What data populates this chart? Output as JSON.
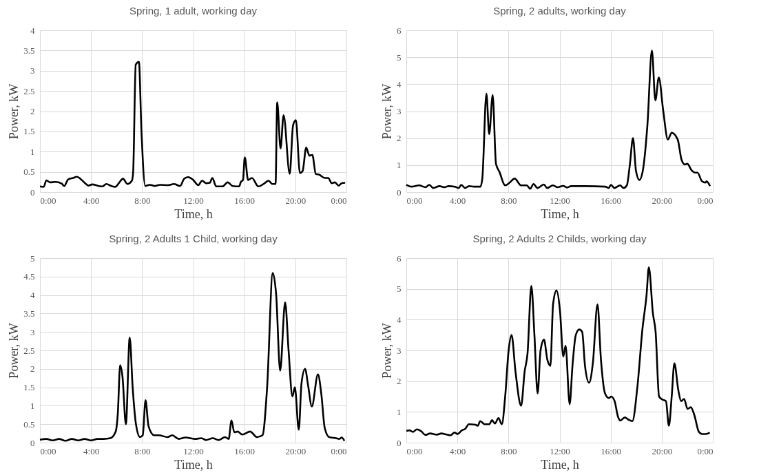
{
  "chart_data": [
    {
      "type": "line",
      "title": "Spring, 1 adult, working day",
      "xlabel": "Time, h",
      "ylabel": "Power, kW",
      "color": "#000000",
      "line_style": "solid",
      "grid": true,
      "x": [
        0,
        0.3,
        0.5,
        0.8,
        1.2,
        1.7,
        1.9,
        2.2,
        2.6,
        2.9,
        3.2,
        3.6,
        3.8,
        4.1,
        4.6,
        4.9,
        5.2,
        5.6,
        5.9,
        6.2,
        6.5,
        6.85,
        7.2,
        7.3,
        7.5,
        7.75,
        7.95,
        8.25,
        8.6,
        9.0,
        9.4,
        10.0,
        10.5,
        10.97,
        11.3,
        11.6,
        12.0,
        12.39,
        12.7,
        13.0,
        13.3,
        13.5,
        13.8,
        14.3,
        14.7,
        15.1,
        15.6,
        15.73,
        15.9,
        16.04,
        16.3,
        16.6,
        17.1,
        17.6,
        17.9,
        18.2,
        18.45,
        18.58,
        18.84,
        19.08,
        19.56,
        19.82,
        20.04,
        20.36,
        20.57,
        20.85,
        21.1,
        21.33,
        21.6,
        21.87,
        22.3,
        22.58,
        22.84,
        23.1,
        23.38,
        23.64,
        23.9
      ],
      "values": [
        0.14,
        0.13,
        0.29,
        0.24,
        0.25,
        0.21,
        0.15,
        0.31,
        0.35,
        0.38,
        0.32,
        0.2,
        0.16,
        0.19,
        0.15,
        0.14,
        0.2,
        0.15,
        0.13,
        0.23,
        0.33,
        0.2,
        0.28,
        0.5,
        3.15,
        3.22,
        1.5,
        0.15,
        0.18,
        0.15,
        0.18,
        0.17,
        0.2,
        0.15,
        0.33,
        0.37,
        0.3,
        0.17,
        0.28,
        0.22,
        0.23,
        0.35,
        0.14,
        0.14,
        0.24,
        0.15,
        0.14,
        0.25,
        0.3,
        0.86,
        0.3,
        0.35,
        0.14,
        0.22,
        0.28,
        0.2,
        0.2,
        2.22,
        1.08,
        1.9,
        0.45,
        1.65,
        1.78,
        0.47,
        0.52,
        1.1,
        0.9,
        0.92,
        0.45,
        0.43,
        0.35,
        0.35,
        0.22,
        0.24,
        0.16,
        0.22,
        0.23
      ],
      "xlim": [
        0,
        24
      ],
      "xticks": [
        {
          "value": 0,
          "label": "0:00"
        },
        {
          "value": 4,
          "label": "4:00"
        },
        {
          "value": 8,
          "label": "8:00"
        },
        {
          "value": 12,
          "label": "12:00"
        },
        {
          "value": 16,
          "label": "16:00"
        },
        {
          "value": 20,
          "label": "20:00"
        },
        {
          "value": 24,
          "label": "0:00"
        }
      ],
      "ylim": [
        0,
        4
      ],
      "yticks": [
        0,
        0.5,
        1,
        1.5,
        2,
        2.5,
        3,
        3.5,
        4
      ]
    },
    {
      "type": "line",
      "title": "Spring, 2 adults, working day",
      "xlabel": "Time, h",
      "ylabel": "Power, kW",
      "color": "#000000",
      "line_style": "solid",
      "grid": true,
      "x": [
        0,
        0.4,
        1.0,
        1.5,
        1.8,
        2.1,
        2.6,
        3.0,
        3.3,
        3.8,
        4.1,
        4.3,
        4.6,
        4.9,
        5.3,
        5.8,
        5.95,
        6.27,
        6.49,
        6.76,
        7.02,
        7.29,
        7.74,
        8.09,
        8.48,
        8.98,
        9.43,
        9.7,
        9.96,
        10.27,
        10.77,
        11.03,
        11.48,
        11.84,
        12.28,
        12.58,
        12.9,
        14.0,
        15.58,
        15.85,
        16.02,
        16.29,
        16.74,
        17.0,
        17.27,
        17.5,
        17.75,
        17.98,
        18.25,
        18.52,
        18.88,
        19.23,
        19.5,
        19.77,
        20.12,
        20.48,
        20.78,
        21.25,
        21.55,
        21.82,
        22.0,
        22.35,
        22.62,
        22.8,
        23.15,
        23.42,
        23.51,
        23.78
      ],
      "values": [
        0.27,
        0.2,
        0.25,
        0.18,
        0.27,
        0.15,
        0.22,
        0.18,
        0.22,
        0.2,
        0.15,
        0.27,
        0.15,
        0.22,
        0.2,
        0.2,
        0.5,
        3.65,
        2.15,
        3.6,
        1.05,
        0.75,
        0.25,
        0.35,
        0.5,
        0.25,
        0.25,
        0.12,
        0.3,
        0.15,
        0.28,
        0.15,
        0.25,
        0.18,
        0.23,
        0.17,
        0.22,
        0.22,
        0.2,
        0.15,
        0.27,
        0.15,
        0.25,
        0.15,
        0.25,
        1.0,
        2.0,
        0.8,
        0.45,
        0.8,
        2.5,
        5.25,
        3.4,
        4.25,
        3.0,
        1.95,
        2.2,
        1.95,
        1.2,
        1.02,
        1.05,
        0.8,
        0.72,
        0.72,
        0.4,
        0.35,
        0.4,
        0.22
      ],
      "xlim": [
        0,
        24
      ],
      "xticks": [
        {
          "value": 0,
          "label": "0:00"
        },
        {
          "value": 4,
          "label": "4:00"
        },
        {
          "value": 8,
          "label": "8:00"
        },
        {
          "value": 12,
          "label": "12:00"
        },
        {
          "value": 16,
          "label": "16:00"
        },
        {
          "value": 20,
          "label": "20:00"
        },
        {
          "value": 24,
          "label": "0:00"
        }
      ],
      "ylim": [
        0,
        6
      ],
      "yticks": [
        0,
        1,
        2,
        3,
        4,
        5,
        6
      ]
    },
    {
      "type": "line",
      "title": "Spring, 2 Adults 1 Child, working day",
      "xlabel": "Time, h",
      "ylabel": "Power, kW",
      "color": "#000000",
      "line_style": "solid",
      "grid": true,
      "x": [
        0,
        0.5,
        1.0,
        1.5,
        2.0,
        2.5,
        3.0,
        3.5,
        4.0,
        4.5,
        5.0,
        5.5,
        5.93,
        6.1,
        6.28,
        6.46,
        6.73,
        7.03,
        7.26,
        7.52,
        7.84,
        8.05,
        8.27,
        8.5,
        8.94,
        9.3,
        10.0,
        10.35,
        10.88,
        11.4,
        12.12,
        12.65,
        13.0,
        13.54,
        13.98,
        14.5,
        14.78,
        15.0,
        15.22,
        15.49,
        15.84,
        16.46,
        16.99,
        17.43,
        17.79,
        18.23,
        18.5,
        18.81,
        19.2,
        19.47,
        19.77,
        19.96,
        20.27,
        20.48,
        20.76,
        21.0,
        21.29,
        21.77,
        22.04,
        22.3,
        22.65,
        23.19,
        23.45,
        23.63,
        23.84
      ],
      "values": [
        0.08,
        0.1,
        0.06,
        0.1,
        0.05,
        0.1,
        0.06,
        0.1,
        0.06,
        0.1,
        0.1,
        0.12,
        0.3,
        0.8,
        2.1,
        1.8,
        0.5,
        2.85,
        1.5,
        0.5,
        0.15,
        0.2,
        1.15,
        0.45,
        0.2,
        0.2,
        0.15,
        0.2,
        0.1,
        0.14,
        0.1,
        0.12,
        0.07,
        0.12,
        0.07,
        0.15,
        0.1,
        0.6,
        0.28,
        0.3,
        0.22,
        0.3,
        0.15,
        0.2,
        1.5,
        4.6,
        4.0,
        1.95,
        3.8,
        2.5,
        1.25,
        1.5,
        0.35,
        1.6,
        2.0,
        1.55,
        0.98,
        1.85,
        1.3,
        0.4,
        0.15,
        0.12,
        0.1,
        0.14,
        0.05
      ],
      "xlim": [
        0,
        24
      ],
      "xticks": [
        {
          "value": 0,
          "label": "0:00"
        },
        {
          "value": 4,
          "label": "4:00"
        },
        {
          "value": 8,
          "label": "8:00"
        },
        {
          "value": 12,
          "label": "12:00"
        },
        {
          "value": 16,
          "label": "16:00"
        },
        {
          "value": 20,
          "label": "20:00"
        },
        {
          "value": 24,
          "label": "0:00"
        }
      ],
      "ylim": [
        0,
        5
      ],
      "yticks": [
        0,
        0.5,
        1,
        1.5,
        2,
        2.5,
        3,
        3.5,
        4,
        4.5,
        5
      ]
    },
    {
      "type": "line",
      "title": "Spring, 2 Adults 2 Childs, working day",
      "xlabel": "Time, h",
      "ylabel": "Power, kW",
      "color": "#000000",
      "line_style": "solid",
      "grid": true,
      "x": [
        0,
        0.25,
        0.52,
        0.82,
        1.14,
        1.5,
        1.86,
        2.39,
        2.75,
        3.1,
        3.46,
        3.78,
        4.0,
        4.35,
        4.62,
        4.89,
        5.42,
        5.6,
        5.78,
        6.14,
        6.5,
        6.71,
        6.94,
        7.21,
        7.48,
        7.74,
        8.01,
        8.24,
        8.55,
        8.99,
        9.26,
        9.49,
        9.79,
        10.03,
        10.28,
        10.51,
        10.78,
        11.04,
        11.28,
        11.49,
        11.76,
        12.03,
        12.29,
        12.47,
        12.79,
        13.01,
        13.27,
        13.54,
        13.77,
        13.99,
        14.31,
        14.61,
        14.97,
        15.24,
        15.56,
        15.86,
        16.04,
        16.31,
        16.57,
        16.75,
        17.11,
        17.38,
        17.7,
        18.09,
        18.49,
        18.81,
        18.99,
        19.31,
        19.52,
        19.79,
        20.06,
        20.33,
        20.56,
        20.78,
        20.99,
        21.3,
        21.52,
        21.75,
        22.02,
        22.28,
        22.55,
        22.91,
        23.18,
        23.44,
        23.76
      ],
      "values": [
        0.38,
        0.4,
        0.35,
        0.43,
        0.38,
        0.25,
        0.3,
        0.26,
        0.3,
        0.27,
        0.24,
        0.33,
        0.28,
        0.4,
        0.45,
        0.6,
        0.58,
        0.55,
        0.7,
        0.6,
        0.6,
        0.73,
        0.62,
        0.8,
        0.6,
        1.5,
        3.0,
        3.5,
        2.3,
        1.2,
        2.3,
        2.9,
        5.1,
        3.5,
        1.6,
        3.0,
        3.35,
        2.7,
        2.5,
        4.5,
        4.95,
        4.3,
        2.8,
        3.15,
        1.25,
        2.5,
        3.5,
        3.68,
        3.6,
        2.5,
        1.95,
        2.6,
        4.5,
        2.7,
        1.6,
        1.45,
        1.5,
        1.35,
        0.85,
        0.72,
        0.82,
        0.75,
        0.7,
        1.8,
        3.7,
        4.8,
        5.7,
        4.2,
        3.6,
        1.5,
        1.4,
        1.35,
        0.55,
        1.5,
        2.58,
        1.7,
        1.35,
        1.42,
        1.1,
        1.15,
        0.9,
        0.35,
        0.28,
        0.28,
        0.33
      ],
      "xlim": [
        0,
        24
      ],
      "xticks": [
        {
          "value": 0,
          "label": "0:00"
        },
        {
          "value": 4,
          "label": "4:00"
        },
        {
          "value": 8,
          "label": "8:00"
        },
        {
          "value": 12,
          "label": "12:00"
        },
        {
          "value": 16,
          "label": "16:00"
        },
        {
          "value": 20,
          "label": "20:00"
        },
        {
          "value": 24,
          "label": "0:00"
        }
      ],
      "ylim": [
        0,
        6
      ],
      "yticks": [
        0,
        1,
        2,
        3,
        4,
        5,
        6
      ]
    }
  ]
}
